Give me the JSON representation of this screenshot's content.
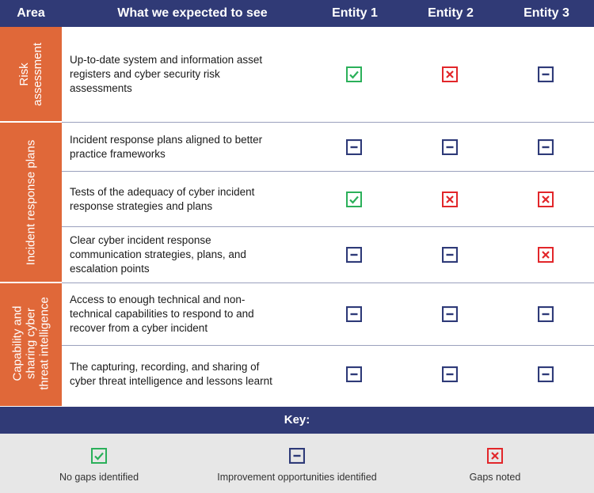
{
  "header": {
    "area": "Area",
    "expected": "What we expected to see",
    "entities": [
      "Entity 1",
      "Entity 2",
      "Entity 3"
    ]
  },
  "areas": [
    {
      "label_lines": [
        "Risk",
        "assessment"
      ]
    },
    {
      "label_lines": [
        "Incident response plans"
      ]
    },
    {
      "label_lines": [
        "Capability and",
        "sharing cyber",
        "threat intelligence"
      ]
    }
  ],
  "rows": [
    {
      "expected_lines": [
        "Up-to-date system and information asset",
        "registers and cyber security risk",
        "assessments"
      ],
      "status": [
        "no-gaps",
        "gaps-noted",
        "improvement"
      ]
    },
    {
      "expected_lines": [
        "Incident response plans aligned to better",
        "practice frameworks"
      ],
      "status": [
        "improvement",
        "improvement",
        "improvement"
      ]
    },
    {
      "expected_lines": [
        "Tests of the adequacy of cyber incident",
        "response strategies and plans"
      ],
      "status": [
        "no-gaps",
        "gaps-noted",
        "gaps-noted"
      ]
    },
    {
      "expected_lines": [
        "Clear cyber incident response",
        "communication strategies, plans, and",
        "escalation points"
      ],
      "status": [
        "improvement",
        "improvement",
        "gaps-noted"
      ]
    },
    {
      "expected_lines": [
        "Access to enough technical and non-",
        "technical capabilities to respond to and",
        "recover from a cyber incident"
      ],
      "status": [
        "improvement",
        "improvement",
        "improvement"
      ]
    },
    {
      "expected_lines": [
        "The capturing, recording, and sharing of",
        "cyber threat intelligence and lessons learnt"
      ],
      "status": [
        "improvement",
        "improvement",
        "improvement"
      ]
    }
  ],
  "key": {
    "title": "Key:",
    "items": [
      {
        "icon": "check-box-icon",
        "label": "No gaps identified"
      },
      {
        "icon": "minus-box-icon",
        "label": "Improvement opportunities identified"
      },
      {
        "icon": "cross-box-icon",
        "label": "Gaps noted"
      }
    ]
  },
  "colors": {
    "header_bg": "#303a76",
    "area_bg": "#e06839",
    "no_gaps": "#2bb05a",
    "improvement": "#2e3a78",
    "gaps_noted": "#e2262a",
    "key_bg": "#e7e7e7"
  }
}
